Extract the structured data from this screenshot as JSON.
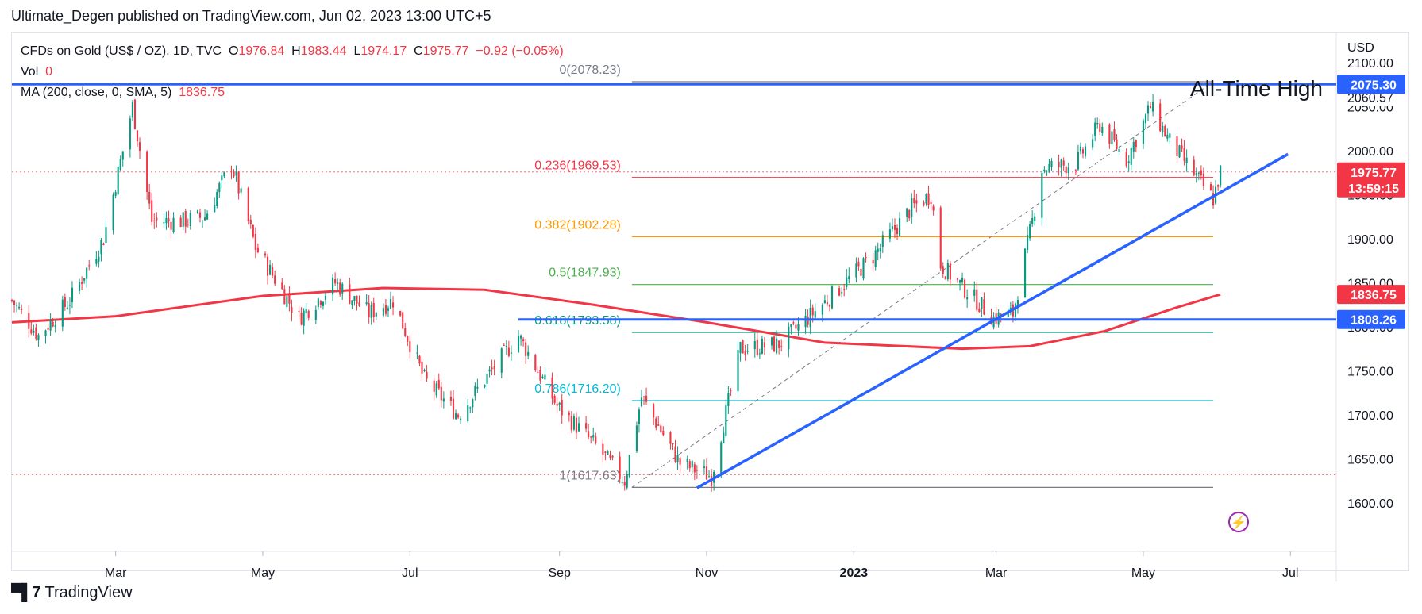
{
  "publisher": "Ultimate_Degen published on TradingView.com, Jun 02, 2023 13:00 UTC+5",
  "legend": {
    "symbol": "CFDs on Gold (US$ / OZ), 1D, TVC",
    "o_label": "O",
    "o": "1976.84",
    "h_label": "H",
    "h": "1983.44",
    "l_label": "L",
    "l": "1974.17",
    "c_label": "C",
    "c": "1975.77",
    "change": "−0.92 (−0.05%)",
    "vol_label": "Vol",
    "vol": "0",
    "ma_label": "MA (200, close, 0, SMA, 5)",
    "ma": "1836.75"
  },
  "currency": "USD",
  "annotation": "All-Time High",
  "brand": "TradingView",
  "colors": {
    "up": "#089981",
    "down": "#f23645",
    "ma": "#f23645",
    "trend": "#2962ff",
    "fib_0": "#787b86",
    "fib_236": "#f23645",
    "fib_382": "#ff9800",
    "fib_5": "#4caf50",
    "fib_618": "#089981",
    "fib_786": "#00bcd4",
    "fib_1": "#787b86"
  },
  "chart_data": {
    "type": "candlestick",
    "ylim": [
      1545,
      2135
    ],
    "x_range": [
      "2022-01-17",
      "2023-07-20"
    ],
    "x_ticks": [
      {
        "date": "2022-03-01",
        "label": "Mar"
      },
      {
        "date": "2022-05-01",
        "label": "May"
      },
      {
        "date": "2022-07-01",
        "label": "Jul"
      },
      {
        "date": "2022-09-01",
        "label": "Sep"
      },
      {
        "date": "2022-11-01",
        "label": "Nov"
      },
      {
        "date": "2023-01-01",
        "label": "2023"
      },
      {
        "date": "2023-03-01",
        "label": "Mar"
      },
      {
        "date": "2023-05-01",
        "label": "May"
      },
      {
        "date": "2023-07-01",
        "label": "Jul"
      }
    ],
    "y_ticks": [
      1600,
      1650,
      1700,
      1750,
      1800,
      1850,
      1900,
      1950,
      2000,
      2050,
      2100
    ],
    "y_tick_labels": [
      "1600.00",
      "1650.00",
      "1700.00",
      "1750.00",
      "1800.00",
      "1850.00",
      "1900.00",
      "1950.00",
      "2000.00",
      "2050.00",
      "2100.00"
    ],
    "price_path": [
      [
        "2022-01-17",
        1830
      ],
      [
        "2022-01-28",
        1790
      ],
      [
        "2022-02-10",
        1830
      ],
      [
        "2022-02-24",
        1900
      ],
      [
        "2022-03-08",
        2050
      ],
      [
        "2022-03-16",
        1920
      ],
      [
        "2022-03-29",
        1920
      ],
      [
        "2022-04-07",
        1925
      ],
      [
        "2022-04-18",
        1985
      ],
      [
        "2022-04-28",
        1890
      ],
      [
        "2022-05-16",
        1810
      ],
      [
        "2022-05-31",
        1850
      ],
      [
        "2022-06-14",
        1815
      ],
      [
        "2022-06-24",
        1830
      ],
      [
        "2022-07-07",
        1740
      ],
      [
        "2022-07-21",
        1700
      ],
      [
        "2022-08-15",
        1790
      ],
      [
        "2022-08-31",
        1710
      ],
      [
        "2022-09-16",
        1665
      ],
      [
        "2022-09-28",
        1625
      ],
      [
        "2022-10-05",
        1720
      ],
      [
        "2022-10-21",
        1645
      ],
      [
        "2022-11-03",
        1630
      ],
      [
        "2022-11-15",
        1775
      ],
      [
        "2022-12-01",
        1780
      ],
      [
        "2022-12-13",
        1810
      ],
      [
        "2023-01-09",
        1880
      ],
      [
        "2023-01-25",
        1935
      ],
      [
        "2023-02-02",
        1950
      ],
      [
        "2023-02-06",
        1870
      ],
      [
        "2023-02-28",
        1810
      ],
      [
        "2023-03-08",
        1815
      ],
      [
        "2023-03-16",
        1920
      ],
      [
        "2023-03-20",
        1980
      ],
      [
        "2023-04-03",
        1985
      ],
      [
        "2023-04-13",
        2030
      ],
      [
        "2023-04-24",
        1990
      ],
      [
        "2023-05-04",
        2050
      ],
      [
        "2023-05-12",
        2010
      ],
      [
        "2023-05-30",
        1945
      ],
      [
        "2023-06-02",
        1976
      ]
    ],
    "ma200": [
      [
        "2022-01-17",
        1805
      ],
      [
        "2022-03-01",
        1812
      ],
      [
        "2022-05-01",
        1835
      ],
      [
        "2022-06-20",
        1844
      ],
      [
        "2022-08-01",
        1842
      ],
      [
        "2022-09-15",
        1825
      ],
      [
        "2022-11-01",
        1805
      ],
      [
        "2022-12-20",
        1782
      ],
      [
        "2023-02-15",
        1775
      ],
      [
        "2023-03-15",
        1778
      ],
      [
        "2023-04-15",
        1795
      ],
      [
        "2023-05-15",
        1822
      ],
      [
        "2023-06-02",
        1836.75
      ]
    ],
    "horizontal_lines": [
      {
        "price": 2075.3,
        "label": "2075.30",
        "color": "#2962ff"
      },
      {
        "price": 1808.26,
        "label": "1808.26",
        "color": "#2962ff",
        "from": "2022-08-15"
      }
    ],
    "price_markers": [
      {
        "price": 2060.57,
        "label": "2060.57",
        "style": "plain"
      },
      {
        "price": 1975.77,
        "label": "1975.77",
        "sublabel": "13:59:15",
        "style": "red"
      },
      {
        "price": 1836.75,
        "label": "1836.75",
        "style": "red"
      },
      {
        "price": 2075.3,
        "label": "2075.30",
        "style": "blue"
      },
      {
        "price": 1808.26,
        "label": "1808.26",
        "style": "blue"
      }
    ],
    "trendline": {
      "start": [
        "2022-10-28",
        1617
      ],
      "end": [
        "2023-06-30",
        1996
      ]
    },
    "fib_diagonal": {
      "start": [
        "2022-10-01",
        1617.63
      ],
      "end": [
        "2023-05-30",
        2078.23
      ]
    },
    "fibonacci": [
      {
        "level": "0",
        "price": 2078.23,
        "label": "0(2078.23)",
        "color": "#787b86"
      },
      {
        "level": "0.236",
        "price": 1969.53,
        "label": "0.236(1969.53)",
        "color": "#f23645"
      },
      {
        "level": "0.382",
        "price": 1902.28,
        "label": "0.382(1902.28)",
        "color": "#ff9800"
      },
      {
        "level": "0.5",
        "price": 1847.93,
        "label": "0.5(1847.93)",
        "color": "#4caf50"
      },
      {
        "level": "0.618",
        "price": 1793.58,
        "label": "0.618(1793.58)",
        "color": "#089981"
      },
      {
        "level": "0.786",
        "price": 1716.2,
        "label": "0.786(1716.20)",
        "color": "#00bcd4"
      },
      {
        "level": "1",
        "price": 1617.63,
        "label": "1(1617.63)",
        "color": "#787b86"
      }
    ],
    "fib_range": [
      "2022-10-01",
      "2023-05-30"
    ],
    "dotted_lines": [
      {
        "price": 1975.77,
        "color": "#f23645"
      },
      {
        "price": 1632,
        "color": "#f23645"
      }
    ]
  }
}
